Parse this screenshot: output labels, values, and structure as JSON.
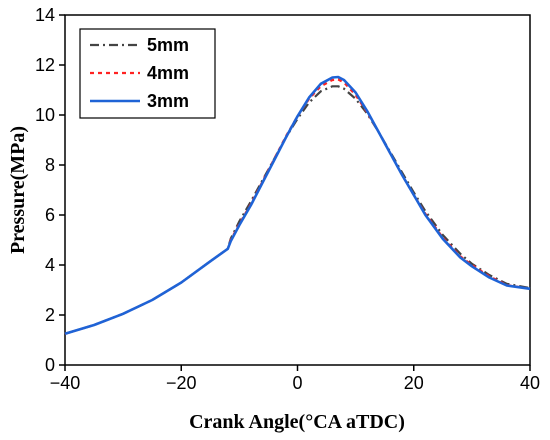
{
  "chart_data": {
    "type": "line",
    "xlabel": "Crank Angle(°CA aTDC)",
    "ylabel": "Pressure(MPa)",
    "xlim": [
      -40,
      40
    ],
    "ylim": [
      0,
      14
    ],
    "xticks": [
      -40,
      -20,
      0,
      20,
      40
    ],
    "yticks": [
      0,
      2,
      4,
      6,
      8,
      10,
      12,
      14
    ],
    "xtick_labels": [
      "−40",
      "−20",
      "0",
      "20",
      "40"
    ],
    "ytick_labels": [
      "0",
      "2",
      "4",
      "6",
      "8",
      "10",
      "12",
      "14"
    ],
    "legend_position": "top-left",
    "grid": false,
    "series": [
      {
        "name": "5mm",
        "color": "#444444",
        "style": "dashdot",
        "x": [
          -40,
          -35,
          -30,
          -25,
          -20,
          -15,
          -12,
          -11.5,
          -10,
          -8,
          -6,
          -4,
          -2,
          0,
          2,
          4,
          6,
          7,
          8,
          10,
          12,
          14,
          16,
          18,
          20,
          22,
          25,
          28,
          30,
          33,
          36,
          40
        ],
        "y": [
          1.25,
          1.6,
          2.05,
          2.6,
          3.3,
          4.15,
          4.65,
          5.05,
          5.75,
          6.55,
          7.4,
          8.25,
          9.1,
          9.85,
          10.5,
          10.95,
          11.15,
          11.15,
          11.05,
          10.65,
          10.05,
          9.3,
          8.5,
          7.7,
          6.9,
          6.15,
          5.2,
          4.45,
          4.05,
          3.6,
          3.25,
          3.08
        ]
      },
      {
        "name": "4mm",
        "color": "#ff2222",
        "style": "dotted",
        "x": [
          -40,
          -35,
          -30,
          -25,
          -20,
          -15,
          -12,
          -11.5,
          -10,
          -8,
          -6,
          -4,
          -2,
          0,
          2,
          4,
          6,
          7,
          8,
          10,
          12,
          14,
          16,
          18,
          20,
          22,
          25,
          28,
          30,
          33,
          36,
          40
        ],
        "y": [
          1.25,
          1.6,
          2.05,
          2.6,
          3.3,
          4.15,
          4.65,
          5.0,
          5.65,
          6.45,
          7.35,
          8.25,
          9.15,
          9.95,
          10.65,
          11.15,
          11.4,
          11.42,
          11.3,
          10.8,
          10.1,
          9.3,
          8.45,
          7.6,
          6.8,
          6.05,
          5.1,
          4.35,
          4.0,
          3.55,
          3.2,
          3.05
        ]
      },
      {
        "name": "3mm",
        "color": "#1f63d6",
        "style": "solid",
        "x": [
          -40,
          -35,
          -30,
          -25,
          -20,
          -15,
          -12,
          -11.5,
          -10,
          -8,
          -6,
          -4,
          -2,
          0,
          2,
          4,
          6,
          7,
          8,
          10,
          12,
          14,
          16,
          18,
          20,
          22,
          25,
          28,
          30,
          33,
          36,
          40
        ],
        "y": [
          1.25,
          1.6,
          2.05,
          2.6,
          3.3,
          4.15,
          4.65,
          4.95,
          5.6,
          6.4,
          7.3,
          8.2,
          9.1,
          9.95,
          10.7,
          11.25,
          11.5,
          11.52,
          11.4,
          10.9,
          10.15,
          9.3,
          8.45,
          7.6,
          6.8,
          6.0,
          5.05,
          4.3,
          3.95,
          3.5,
          3.18,
          3.05
        ]
      }
    ]
  }
}
